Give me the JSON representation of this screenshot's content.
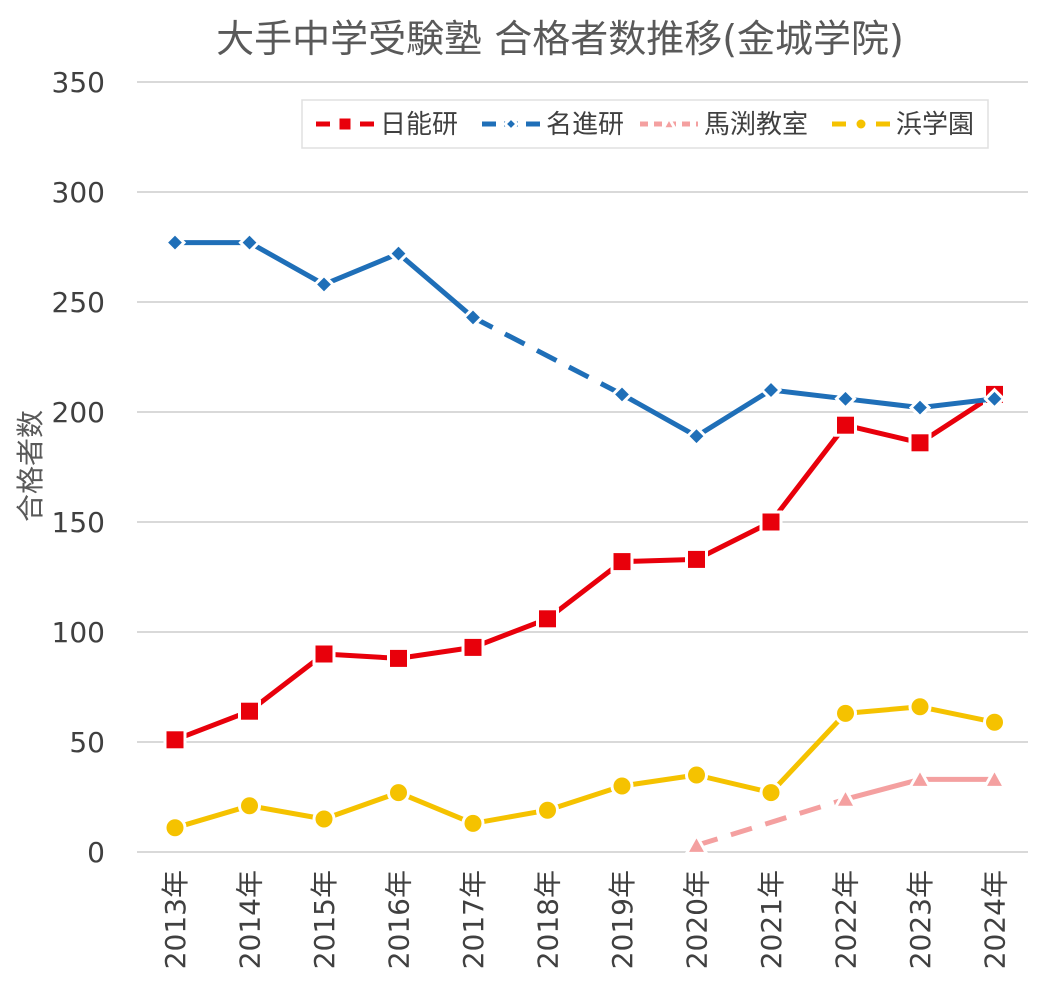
{
  "chart_data": {
    "type": "line",
    "title": "大手中学受験塾 合格者数推移(金城学院)",
    "xlabel": "",
    "ylabel": "合格者数",
    "ylim": [
      0,
      350
    ],
    "yticks": [
      0,
      50,
      100,
      150,
      200,
      250,
      300,
      350
    ],
    "grid": true,
    "legend_position": "top-right",
    "categories": [
      "2013年",
      "2014年",
      "2015年",
      "2016年",
      "2017年",
      "2018年",
      "2019年",
      "2020年",
      "2021年",
      "2022年",
      "2023年",
      "2024年"
    ],
    "series": [
      {
        "name": "日能研",
        "color": "#E8000B",
        "marker": "square",
        "values": [
          51,
          64,
          90,
          88,
          93,
          106,
          132,
          133,
          150,
          194,
          186,
          208
        ],
        "dashed_segments": []
      },
      {
        "name": "名進研",
        "color": "#1F6FB8",
        "marker": "diamond",
        "values": [
          277,
          277,
          258,
          272,
          243,
          null,
          208,
          189,
          210,
          206,
          202,
          206
        ],
        "dashed_segments": [
          [
            4,
            6
          ]
        ]
      },
      {
        "name": "馬渕教室",
        "color": "#F4A0A0",
        "marker": "triangle",
        "values": [
          null,
          null,
          null,
          null,
          null,
          null,
          null,
          3,
          null,
          24,
          33,
          33
        ],
        "dashed_segments": [
          [
            7,
            9
          ]
        ]
      },
      {
        "name": "浜学園",
        "color": "#F5C200",
        "marker": "circle",
        "values": [
          11,
          21,
          15,
          27,
          13,
          19,
          30,
          35,
          27,
          63,
          66,
          59
        ],
        "dashed_segments": []
      }
    ]
  }
}
